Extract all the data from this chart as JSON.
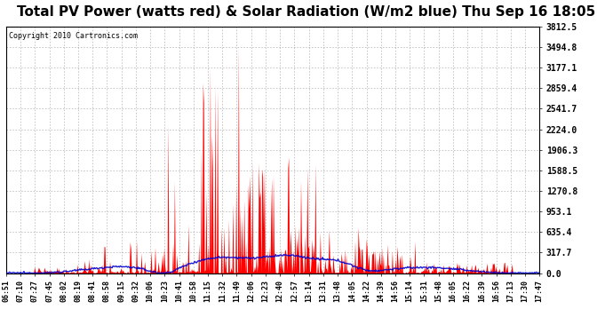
{
  "title": "Total PV Power (watts red) & Solar Radiation (W/m2 blue) Thu Sep 16 18:05",
  "copyright_text": "Copyright 2010 Cartronics.com",
  "title_fontsize": 11,
  "background_color": "#ffffff",
  "plot_bg_color": "#ffffff",
  "grid_color": "#999999",
  "ymax": 3812.5,
  "ymin": 0.0,
  "ytick_values": [
    0.0,
    317.7,
    635.4,
    953.1,
    1270.8,
    1588.5,
    1906.3,
    2224.0,
    2541.7,
    2859.4,
    3177.1,
    3494.8,
    3812.5
  ],
  "n_points": 660,
  "x_tick_labels": [
    "06:51",
    "07:10",
    "07:27",
    "07:45",
    "08:02",
    "08:19",
    "08:41",
    "08:58",
    "09:15",
    "09:32",
    "10:06",
    "10:23",
    "10:41",
    "10:58",
    "11:15",
    "11:32",
    "11:49",
    "12:06",
    "12:23",
    "12:40",
    "12:57",
    "13:14",
    "13:31",
    "13:48",
    "14:05",
    "14:22",
    "14:39",
    "14:56",
    "15:14",
    "15:31",
    "15:48",
    "16:05",
    "16:22",
    "16:39",
    "16:56",
    "17:13",
    "17:30",
    "17:47"
  ],
  "red_color": "#ff0000",
  "blue_color": "#0000cc",
  "dashed_line_color": "#888888"
}
